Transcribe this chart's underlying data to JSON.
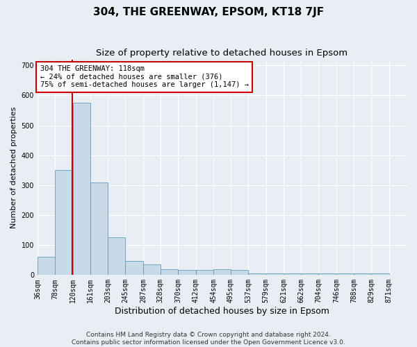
{
  "title1": "304, THE GREENWAY, EPSOM, KT18 7JF",
  "title2": "Size of property relative to detached houses in Epsom",
  "xlabel": "Distribution of detached houses by size in Epsom",
  "ylabel": "Number of detached properties",
  "bin_edges": [
    36,
    78,
    120,
    161,
    203,
    245,
    287,
    328,
    370,
    412,
    454,
    495,
    537,
    579,
    621,
    662,
    704,
    746,
    788,
    829,
    871
  ],
  "bar_heights": [
    62,
    350,
    575,
    310,
    125,
    48,
    35,
    20,
    18,
    18,
    20,
    18,
    5,
    5,
    5,
    5,
    5,
    5,
    5,
    5
  ],
  "bar_color": "#c8d9e8",
  "bar_edge_color": "#6699bb",
  "property_size": 118,
  "property_line_color": "#cc0000",
  "annotation_text": "304 THE GREENWAY: 118sqm\n← 24% of detached houses are smaller (376)\n75% of semi-detached houses are larger (1,147) →",
  "annotation_box_color": "#ffffff",
  "annotation_box_edge_color": "#cc0000",
  "ylim": [
    0,
    720
  ],
  "xlim": [
    36,
    913
  ],
  "yticks": [
    0,
    100,
    200,
    300,
    400,
    500,
    600,
    700
  ],
  "footer_line1": "Contains HM Land Registry data © Crown copyright and database right 2024.",
  "footer_line2": "Contains public sector information licensed under the Open Government Licence v3.0.",
  "background_color": "#e8eef4",
  "plot_background_color": "#e8eef4",
  "grid_color": "#ffffff",
  "title1_fontsize": 11,
  "title2_fontsize": 9.5,
  "xlabel_fontsize": 9,
  "ylabel_fontsize": 8,
  "tick_fontsize": 7,
  "annotation_fontsize": 7.5,
  "footer_fontsize": 6.5
}
